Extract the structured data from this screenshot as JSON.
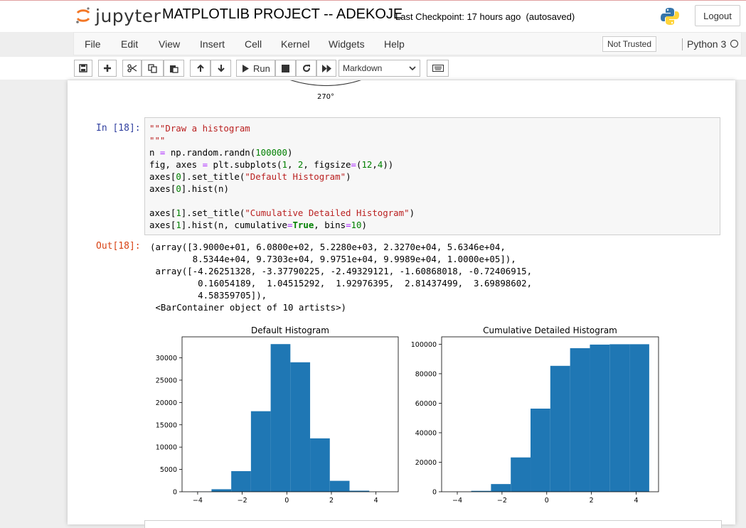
{
  "header": {
    "logo_text": "jupyter",
    "notebook_title": "MATPLOTLIB PROJECT -- ADEKOJE",
    "checkpoint": "Last Checkpoint: 17 hours ago  (autosaved)",
    "logout_label": "Logout"
  },
  "menu": {
    "items": [
      "File",
      "Edit",
      "View",
      "Insert",
      "Cell",
      "Kernel",
      "Widgets",
      "Help"
    ],
    "trust_label": "Not Trusted",
    "kernel_name": "Python 3"
  },
  "toolbar": {
    "run_label": "Run",
    "cell_type": "Markdown"
  },
  "previous_output": {
    "polar_label": "270°"
  },
  "cell": {
    "in_prompt": "In [18]:",
    "out_prompt": "Out[18]:",
    "code_lines": [
      "\"\"\"Draw a histogram",
      "\"\"\"",
      "n = np.random.randn(100000)",
      "fig, axes = plt.subplots(1, 2, figsize=(12,4))",
      "axes[0].set_title(\"Default Histogram\")",
      "axes[0].hist(n)",
      "",
      "axes[1].set_title(\"Cumulative Detailed Histogram\")",
      "axes[1].hist(n, cumulative=True, bins=10)"
    ],
    "output_text": "(array([3.9000e+01, 6.0800e+02, 5.2280e+03, 2.3270e+04, 5.6346e+04,\n        8.5344e+04, 9.7303e+04, 9.9751e+04, 9.9989e+04, 1.0000e+05]),\n array([-4.26251328, -3.37790225, -2.49329121, -1.60868018, -0.72406915,\n         0.16054189,  1.04515292,  1.92976395,  2.81437499,  3.69898602,\n         4.58359705]),\n <BarContainer object of 10 artists>)"
  },
  "colors": {
    "bar": "#1f77b4",
    "in_prompt": "#303f9f",
    "out_prompt": "#d84315"
  },
  "chart_data": [
    {
      "type": "bar",
      "title": "Default Histogram",
      "bin_edges": [
        -4.26251328,
        -3.37790225,
        -2.49329121,
        -1.60868018,
        -0.72406915,
        0.16054189,
        1.04515292,
        1.92976395,
        2.81437499,
        3.69898602,
        4.58359705
      ],
      "values": [
        39,
        569,
        4620,
        18042,
        33076,
        28998,
        11959,
        2448,
        238,
        11
      ],
      "xlim": [
        -4.7,
        5.0
      ],
      "ylim": [
        0,
        34700
      ],
      "xticks": [
        -4,
        -2,
        0,
        2,
        4
      ],
      "yticks": [
        0,
        5000,
        10000,
        15000,
        20000,
        25000,
        30000
      ],
      "xlabel": "",
      "ylabel": ""
    },
    {
      "type": "bar",
      "title": "Cumulative Detailed Histogram",
      "bin_edges": [
        -4.26251328,
        -3.37790225,
        -2.49329121,
        -1.60868018,
        -0.72406915,
        0.16054189,
        1.04515292,
        1.92976395,
        2.81437499,
        3.69898602,
        4.58359705
      ],
      "values": [
        39,
        608,
        5228,
        23270,
        56346,
        85344,
        97303,
        99751,
        99989,
        100000
      ],
      "xlim": [
        -4.7,
        5.0
      ],
      "ylim": [
        0,
        105000
      ],
      "xticks": [
        -4,
        -2,
        0,
        2,
        4
      ],
      "yticks": [
        0,
        20000,
        40000,
        60000,
        80000,
        100000
      ],
      "xlabel": "",
      "ylabel": ""
    }
  ]
}
